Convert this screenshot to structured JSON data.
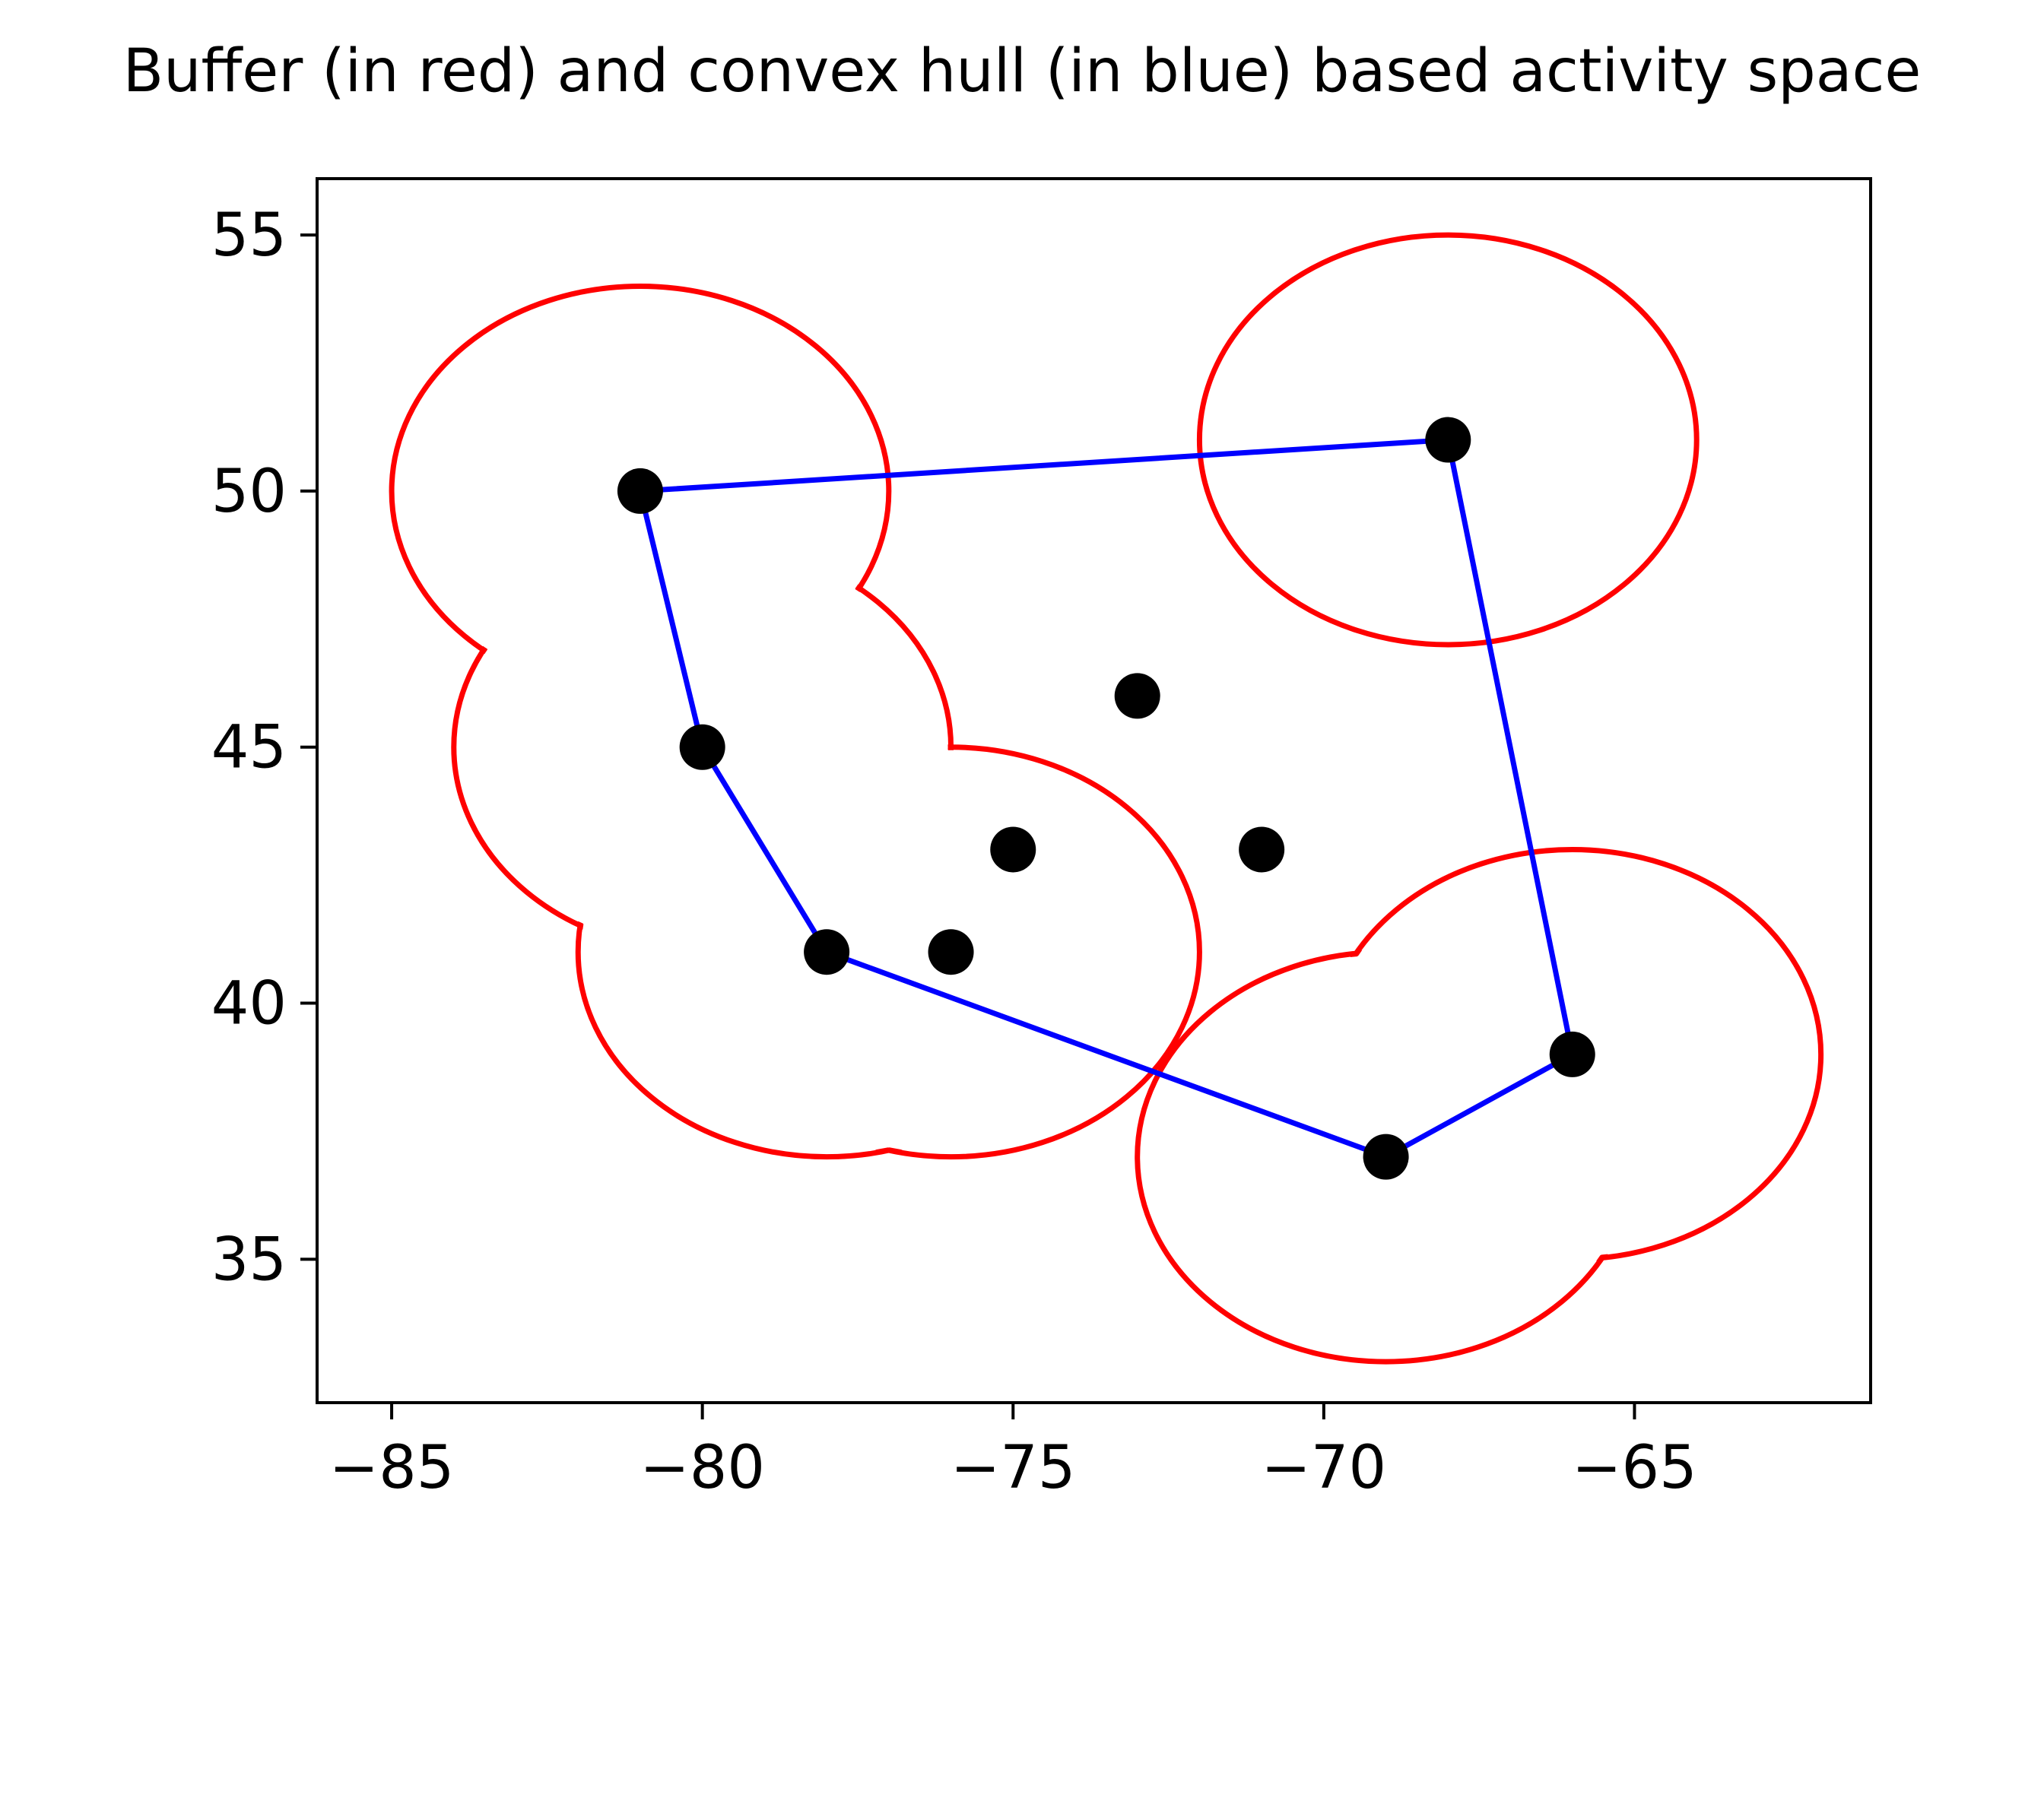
{
  "chart_data": {
    "type": "scatter",
    "title": "Buffer (in red) and convex hull (in blue) based activity space",
    "xlabel": "",
    "ylabel": "",
    "xlim": [
      -86.2,
      -61.2
    ],
    "ylim": [
      32.2,
      56.1
    ],
    "xticks": [
      -85,
      -80,
      -75,
      -70,
      -65
    ],
    "yticks": [
      35,
      40,
      45,
      50,
      55
    ],
    "xtick_labels": [
      "−85",
      "−80",
      "−75",
      "−70",
      "−65"
    ],
    "ytick_labels": [
      "35",
      "40",
      "45",
      "50",
      "55"
    ],
    "grid": false,
    "legend": "none",
    "points": {
      "x": [
        -81,
        -80,
        -78,
        -76,
        -75,
        -73,
        -71,
        -68,
        -66,
        -69
      ],
      "y": [
        50,
        45,
        41,
        41,
        43,
        46,
        43,
        51,
        39,
        37
      ]
    },
    "convex_hull": {
      "x": [
        -81,
        -68,
        -66,
        -69,
        -78,
        -80,
        -81
      ],
      "y": [
        50,
        51,
        39,
        37,
        41,
        45,
        50
      ]
    },
    "buffer": {
      "radius": 4,
      "centers": {
        "x": [
          -81,
          -80,
          -78,
          -76,
          -68,
          -66,
          -69
        ],
        "y": [
          50,
          45,
          41,
          41,
          51,
          39,
          37
        ]
      },
      "inner_arcs": [
        {
          "cx": -73,
          "cy": 46,
          "r": 4
        },
        {
          "cx": -71,
          "cy": 43,
          "r": 4
        }
      ]
    },
    "colors": {
      "points": "#000000",
      "convex_hull": "#0000ff",
      "buffer": "#ff0000"
    }
  }
}
